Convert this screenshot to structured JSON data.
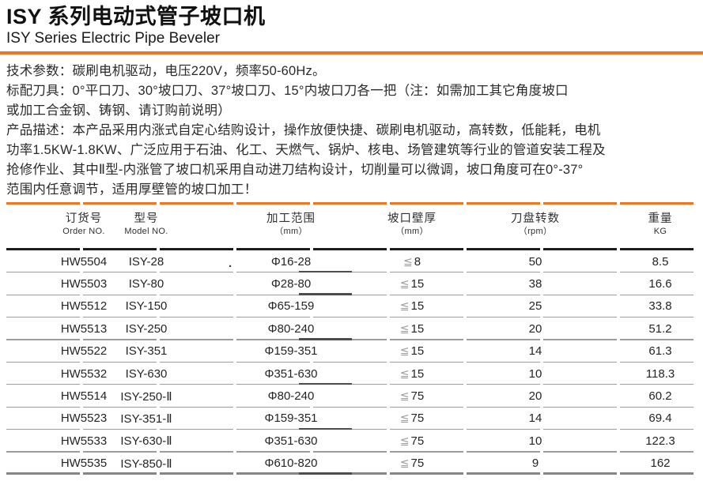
{
  "page": {
    "title_cn": "ISY 系列电动式管子坡口机",
    "title_en": "ISY Series Electric Pipe Beveler",
    "accent_color": "#ee7623"
  },
  "intro": {
    "lines": [
      "技术参数：碳刷电机驱动，电压220V，频率50-60Hz。",
      "标配刀具：0°平口刀、30°坡口刀、37°坡口刀、15°内坡口刀各一把（注：如需加工其它角度坡口",
      "或加工合金钢、铸钢、请订购前说明）",
      "产品描述：本产品采用内涨式自定心结购设计，操作放便快捷、碳刷电机驱动，高转数，低能耗，电机",
      "功率1.5KW-1.8KW、广泛应用于石油、化工、天燃气、锅炉、核电、场管建筑等行业的管道安装工程及",
      "抢修作业、其中Ⅱ型-内涨管了坡口机采用自动进刀结构设计，切削量可以微调，坡口角度可在0°-37°",
      "范围内任意调节，适用厚壁管的坡口加工！"
    ]
  },
  "table": {
    "le_symbol": "≦",
    "columns": [
      {
        "cn": "订货号",
        "sub": "Order NO."
      },
      {
        "cn": "型号",
        "sub": "Model NO."
      },
      {
        "cn": "加工范围",
        "sub": "（mm）"
      },
      {
        "cn": "坡口壁厚",
        "sub": "（mm）"
      },
      {
        "cn": "刀盘转数",
        "sub": "（rpm）"
      },
      {
        "cn": "重量",
        "sub": "KG"
      }
    ],
    "rows": [
      {
        "order": "HW5504",
        "model": "ISY-28",
        "stray_mark": ".",
        "range": "Φ16-28",
        "thickness": "8",
        "rpm": "50",
        "weight": "8.5"
      },
      {
        "order": "HW5503",
        "model": "ISY-80",
        "range": "Φ28-80",
        "thickness": "15",
        "rpm": "38",
        "weight": "16.6"
      },
      {
        "order": "HW5512",
        "model": "ISY-150",
        "range": "Φ65-159",
        "thickness": "15",
        "rpm": "25",
        "weight": "33.8"
      },
      {
        "order": "HW5513",
        "model": "ISY-250",
        "range": "Φ80-240",
        "thickness": "15",
        "rpm": "20",
        "weight": "51.2"
      },
      {
        "order": "HW5522",
        "model": "ISY-351",
        "range": "Φ159-351",
        "thickness": "15",
        "rpm": "14",
        "weight": "61.3"
      },
      {
        "order": "HW5532",
        "model": "ISY-630",
        "range": "Φ351-630",
        "thickness": "15",
        "rpm": "10",
        "weight": "118.3"
      },
      {
        "order": "HW5514",
        "model": "ISY-250-Ⅱ",
        "range": "Φ80-240",
        "thickness": "75",
        "rpm": "20",
        "weight": "60.2"
      },
      {
        "order": "HW5523",
        "model": "ISY-351-Ⅱ",
        "range": "Φ159-351",
        "thickness": "75",
        "rpm": "14",
        "weight": "69.4"
      },
      {
        "order": "HW5533",
        "model": "ISY-630-Ⅱ",
        "range": "Φ351-630",
        "thickness": "75",
        "rpm": "10",
        "weight": "122.3"
      },
      {
        "order": "HW5535",
        "model": "ISY-850-Ⅱ",
        "range": "Φ610-820",
        "thickness": "75",
        "rpm": "9",
        "weight": "162"
      }
    ]
  }
}
